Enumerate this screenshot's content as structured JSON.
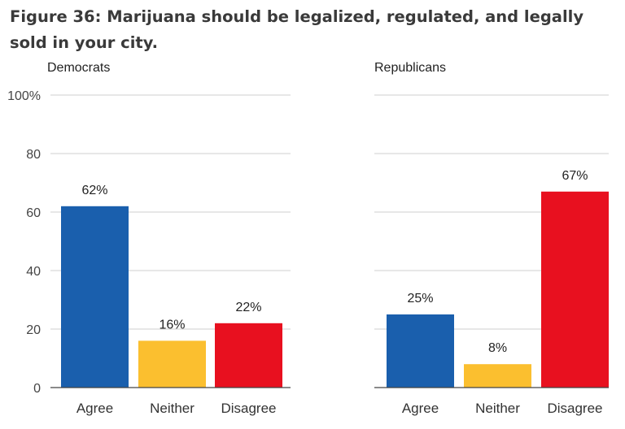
{
  "title": "Figure 36: Marijuana should be legalized, regulated, and legally sold in your city.",
  "chart_data": [
    {
      "type": "bar",
      "panel": "Democrats",
      "categories": [
        "Agree",
        "Neither",
        "Disagree"
      ],
      "values": [
        62,
        16,
        22
      ],
      "labels": [
        "62%",
        "16%",
        "22%"
      ],
      "colors": [
        "#1a5fad",
        "#fbbf2f",
        "#e8101f"
      ],
      "ylim": [
        0,
        100
      ],
      "yticks": [
        0,
        20,
        40,
        60,
        80,
        100
      ],
      "ytick_labels": [
        "0",
        "20",
        "40",
        "60",
        "80",
        "100%"
      ],
      "grid": true
    },
    {
      "type": "bar",
      "panel": "Republicans",
      "categories": [
        "Agree",
        "Neither",
        "Disagree"
      ],
      "values": [
        25,
        8,
        67
      ],
      "labels": [
        "25%",
        "8%",
        "67%"
      ],
      "colors": [
        "#1a5fad",
        "#fbbf2f",
        "#e8101f"
      ],
      "ylim": [
        0,
        100
      ],
      "yticks": [
        0,
        20,
        40,
        60,
        80,
        100
      ],
      "grid": true
    }
  ]
}
